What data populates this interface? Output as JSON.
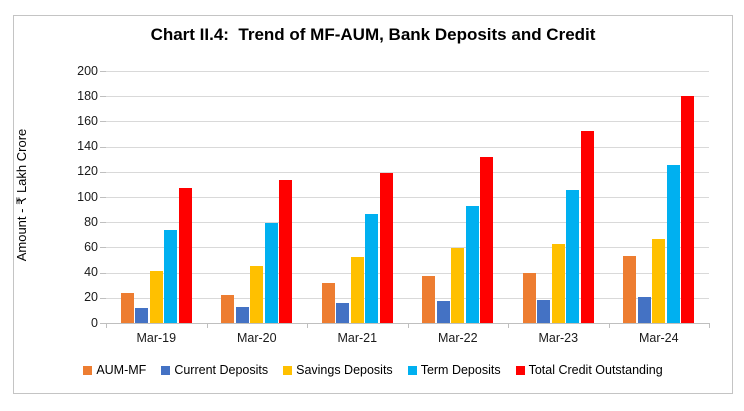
{
  "chart": {
    "title": "Chart II.4:  Trend of MF-AUM, Bank Deposits and Credit",
    "y_axis_title": "Amount - ₹ Lakh Crore"
  },
  "chart_data": {
    "type": "bar",
    "title": "Chart II.4: Trend of MF-AUM, Bank Deposits and Credit",
    "categories": [
      "Mar-19",
      "Mar-20",
      "Mar-21",
      "Mar-22",
      "Mar-23",
      "Mar-24"
    ],
    "series": [
      {
        "name": "AUM-MF",
        "color": "#ED7D31",
        "values": [
          23.8,
          22.3,
          31.4,
          37.6,
          39.4,
          53.4
        ]
      },
      {
        "name": "Current Deposits",
        "color": "#4472C4",
        "values": [
          11.7,
          12.8,
          15.6,
          17.2,
          18.2,
          20.5
        ]
      },
      {
        "name": "Savings Deposits",
        "color": "#FFC000",
        "values": [
          41.0,
          45.0,
          52.7,
          59.4,
          63.0,
          66.8
        ]
      },
      {
        "name": "Term Deposits",
        "color": "#00B0F0",
        "values": [
          73.5,
          79.5,
          86.2,
          93.2,
          105.7,
          125.5
        ]
      },
      {
        "name": "Total Credit Outstanding",
        "color": "#FF0000",
        "values": [
          106.8,
          113.2,
          119.0,
          131.5,
          152.2,
          180.3
        ]
      }
    ],
    "xlabel": "",
    "ylabel": "Amount - ₹ Lakh Crore",
    "ylim": [
      0,
      200
    ],
    "ytick_step": 20,
    "grid": true,
    "legend_position": "bottom"
  },
  "style": {
    "gridline_color": "#D9D9D9",
    "axis_line_color": "#BFBFBF",
    "frame_border_color": "#C4C4C4",
    "text_color": "#000000"
  }
}
